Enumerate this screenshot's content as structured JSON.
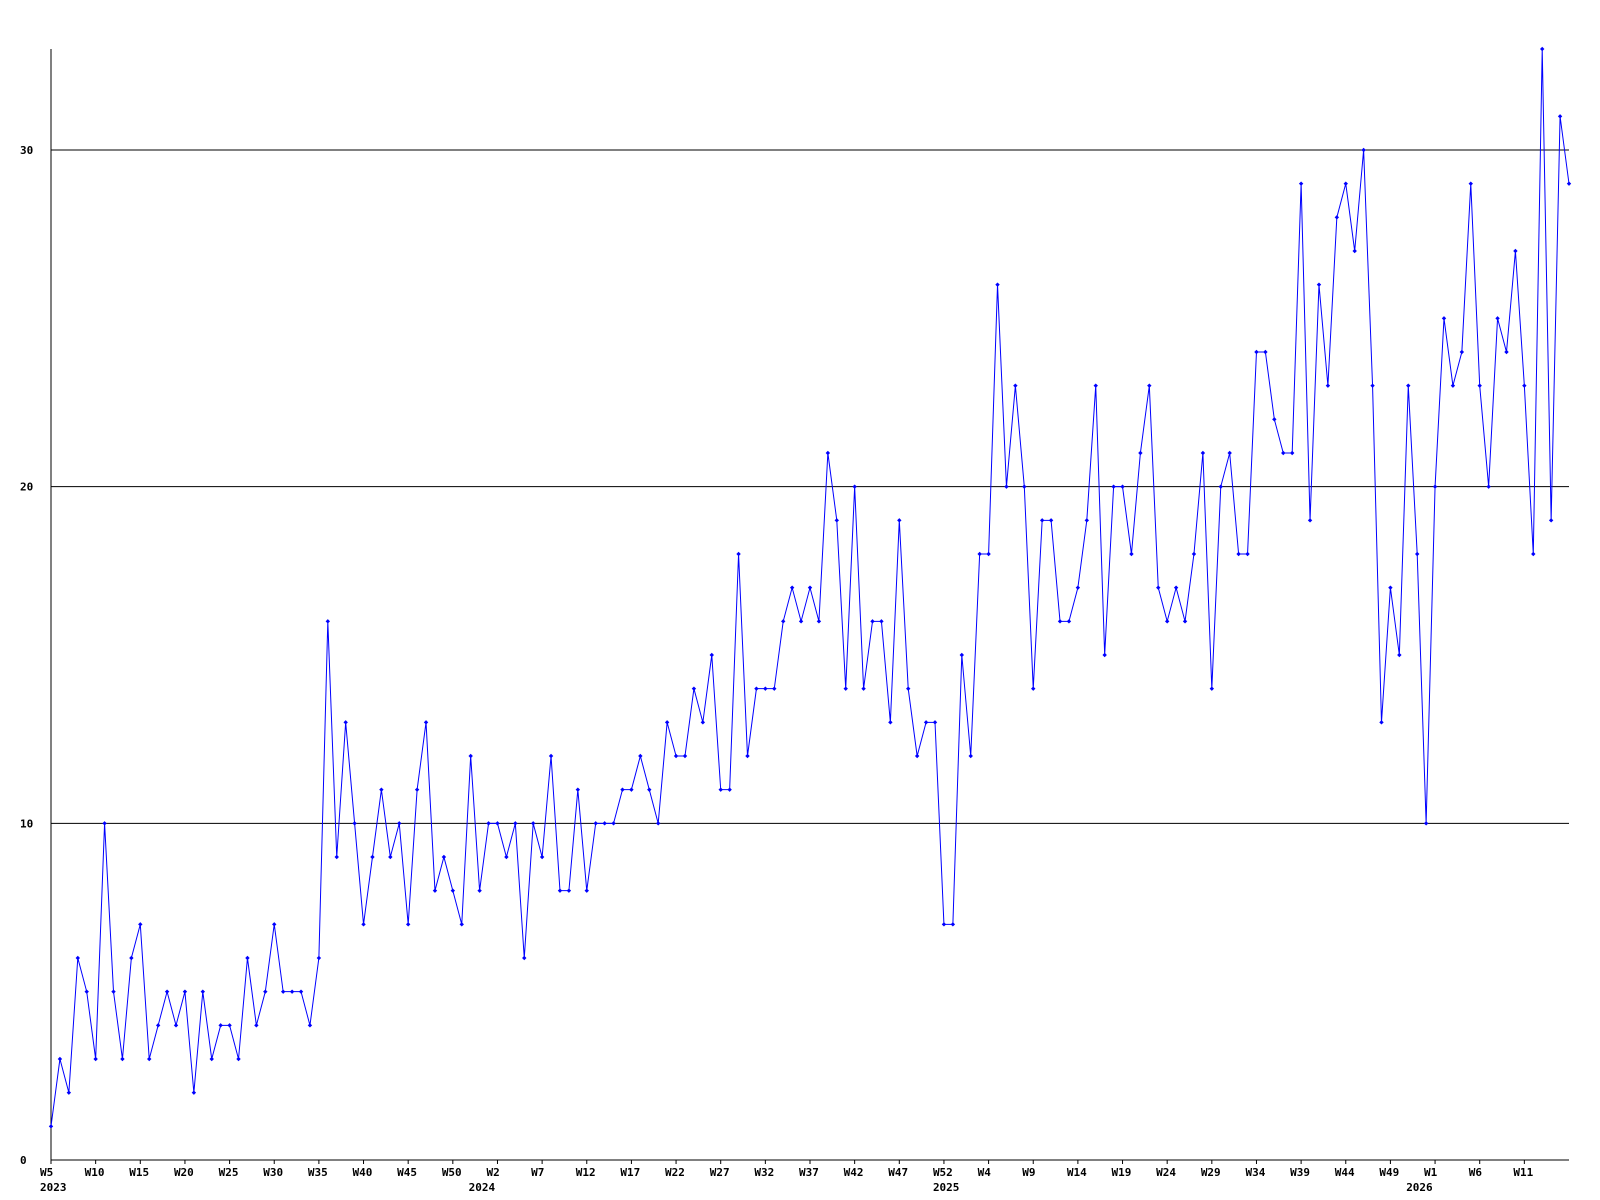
{
  "chart_data": {
    "type": "line",
    "categories": [
      "W5",
      null,
      null,
      null,
      null,
      "W10",
      null,
      null,
      null,
      null,
      "W15",
      null,
      null,
      null,
      null,
      "W20",
      null,
      null,
      null,
      null,
      "W25",
      null,
      null,
      null,
      null,
      "W30",
      null,
      null,
      null,
      null,
      "W35",
      null,
      null,
      null,
      null,
      "W40",
      null,
      null,
      null,
      null,
      "W45",
      null,
      null,
      null,
      null,
      "W50",
      null,
      null,
      null,
      null,
      "W2",
      null,
      null,
      null,
      null,
      "W7",
      null,
      null,
      null,
      null,
      "W12",
      null,
      null,
      null,
      null,
      "W17",
      null,
      null,
      null,
      null,
      "W22",
      null,
      null,
      null,
      null,
      "W27",
      null,
      null,
      null,
      null,
      "W32",
      null,
      null,
      null,
      null,
      "W37",
      null,
      null,
      null,
      null,
      "W42",
      null,
      null,
      null,
      null,
      "W47",
      null,
      null,
      null,
      null,
      "W52",
      null,
      null,
      null,
      null,
      "W4",
      null,
      null,
      null,
      null,
      "W9",
      null,
      null,
      null,
      null,
      "W14",
      null,
      null,
      null,
      null,
      "W19",
      null,
      null,
      null,
      null,
      "W24",
      null,
      null,
      null,
      null,
      "W29",
      null,
      null,
      null,
      null,
      "W34",
      null,
      null,
      null,
      null,
      "W39",
      null,
      null,
      null,
      null,
      "W44",
      null,
      null,
      null,
      null,
      "W49",
      null,
      null,
      null,
      null,
      "W1",
      null,
      null,
      null,
      null,
      "W6",
      null,
      null,
      null,
      null,
      "W11",
      null,
      null,
      null,
      null,
      null
    ],
    "category_years": [
      "2023",
      null,
      null,
      null,
      null,
      null,
      null,
      null,
      null,
      null,
      null,
      null,
      null,
      null,
      null,
      null,
      null,
      null,
      null,
      null,
      null,
      null,
      null,
      null,
      null,
      null,
      null,
      null,
      null,
      null,
      null,
      null,
      null,
      null,
      null,
      null,
      null,
      null,
      null,
      null,
      null,
      null,
      null,
      null,
      null,
      null,
      null,
      null,
      "2024",
      null,
      null,
      null,
      null,
      null,
      null,
      null,
      null,
      null,
      null,
      null,
      null,
      null,
      null,
      null,
      null,
      null,
      null,
      null,
      null,
      null,
      null,
      null,
      null,
      null,
      null,
      null,
      null,
      null,
      null,
      null,
      null,
      null,
      null,
      null,
      null,
      null,
      null,
      null,
      null,
      null,
      null,
      null,
      null,
      null,
      null,
      null,
      null,
      null,
      null,
      null,
      "2025",
      null,
      null,
      null,
      null,
      null,
      null,
      null,
      null,
      null,
      null,
      null,
      null,
      null,
      null,
      null,
      null,
      null,
      null,
      null,
      null,
      null,
      null,
      null,
      null,
      null,
      null,
      null,
      null,
      null,
      null,
      null,
      null,
      null,
      null,
      null,
      null,
      null,
      null,
      null,
      null,
      null,
      null,
      null,
      null,
      null,
      null,
      null,
      null,
      null,
      null,
      null,
      null,
      "2026",
      null,
      null,
      null,
      null,
      null,
      null,
      null,
      null,
      null,
      null,
      null,
      null,
      null,
      null,
      null,
      null,
      null
    ],
    "series": [
      {
        "color": "#0000ff",
        "values": [
          1,
          3,
          2,
          6,
          5,
          3,
          10,
          5,
          3,
          6,
          7,
          3,
          4,
          5,
          4,
          5,
          2,
          5,
          3,
          4,
          4,
          3,
          6,
          4,
          5,
          7,
          5,
          5,
          5,
          4,
          6,
          16,
          9,
          13,
          10,
          7,
          9,
          11,
          9,
          10,
          7,
          11,
          13,
          8,
          9,
          8,
          7,
          12,
          8,
          10,
          10,
          9,
          10,
          6,
          10,
          9,
          12,
          8,
          8,
          11,
          8,
          10,
          10,
          10,
          11,
          11,
          12,
          11,
          10,
          13,
          12,
          12,
          14,
          13,
          15,
          11,
          11,
          18,
          12,
          14,
          14,
          14,
          16,
          17,
          16,
          17,
          16,
          21,
          19,
          14,
          20,
          14,
          16,
          16,
          13,
          19,
          14,
          12,
          13,
          13,
          7,
          7,
          15,
          12,
          18,
          18,
          26,
          20,
          23,
          20,
          14,
          19,
          19,
          16,
          16,
          17,
          19,
          23,
          15,
          20,
          20,
          18,
          21,
          23,
          17,
          16,
          17,
          16,
          18,
          21,
          14,
          20,
          21,
          18,
          18,
          24,
          24,
          22,
          21,
          21,
          29,
          19,
          26,
          23,
          28,
          29,
          27,
          30,
          23,
          13,
          17,
          15,
          23,
          18,
          10,
          20,
          25,
          23,
          24,
          29,
          23,
          20,
          25,
          24,
          27,
          23,
          18,
          33,
          19,
          31,
          29
        ]
      }
    ],
    "ylim": [
      0,
      33
    ],
    "yticks": [
      0,
      10,
      20,
      30
    ],
    "grid": true
  }
}
